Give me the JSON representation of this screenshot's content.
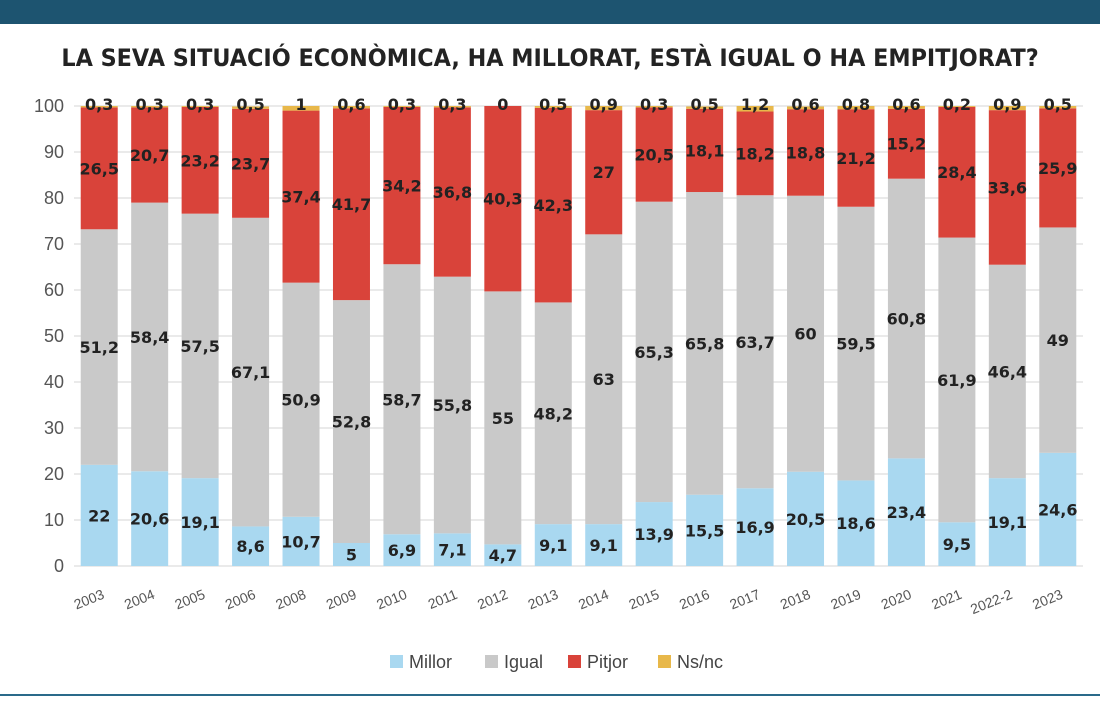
{
  "chart_data": {
    "type": "bar",
    "stacked": true,
    "title": "LA SEVA SITUACIÓ ECONÒMICA, HA MILLORAT, ESTÀ IGUAL O HA EMPITJORAT?",
    "categories": [
      "2003",
      "2004",
      "2005",
      "2006",
      "2008",
      "2009",
      "2010",
      "2011",
      "2012",
      "2013",
      "2014",
      "2015",
      "2016",
      "2017",
      "2018",
      "2019",
      "2020",
      "2021",
      "2022-2",
      "2023"
    ],
    "series": [
      {
        "name": "Millor",
        "color": "#a9d8f0",
        "values": [
          22,
          20.6,
          19.1,
          8.6,
          10.7,
          5,
          6.9,
          7.1,
          4.7,
          9.1,
          9.1,
          13.9,
          15.5,
          16.9,
          20.5,
          18.6,
          23.4,
          9.5,
          19.1,
          24.6
        ],
        "labels": [
          "22",
          "20,6",
          "19,1",
          "8,6",
          "10,7",
          "5",
          "6,9",
          "7,1",
          "4,7",
          "9,1",
          "9,1",
          "13,9",
          "15,5",
          "16,9",
          "20,5",
          "18,6",
          "23,4",
          "9,5",
          "19,1",
          "24,6"
        ]
      },
      {
        "name": "Igual",
        "color": "#c9c9c9",
        "values": [
          51.2,
          58.4,
          57.5,
          67.1,
          50.9,
          52.8,
          58.7,
          55.8,
          55,
          48.2,
          63,
          65.3,
          65.8,
          63.7,
          60,
          59.5,
          60.8,
          61.9,
          46.4,
          49
        ],
        "labels": [
          "51,2",
          "58,4",
          "57,5",
          "67,1",
          "50,9",
          "52,8",
          "58,7",
          "55,8",
          "55",
          "48,2",
          "63",
          "65,3",
          "65,8",
          "63,7",
          "60",
          "59,5",
          "60,8",
          "61,9",
          "46,4",
          "49"
        ]
      },
      {
        "name": "Pitjor",
        "color": "#d9433a",
        "values": [
          26.5,
          20.7,
          23.2,
          23.7,
          37.4,
          41.7,
          34.2,
          36.8,
          40.3,
          42.3,
          27,
          20.5,
          18.1,
          18.2,
          18.8,
          21.2,
          15.2,
          28.4,
          33.6,
          25.9
        ],
        "labels": [
          "26,5",
          "20,7",
          "23,2",
          "23,7",
          "37,4",
          "41,7",
          "34,2",
          "36,8",
          "40,3",
          "42,3",
          "27",
          "20,5",
          "18,1",
          "18,2",
          "18,8",
          "21,2",
          "15,2",
          "28,4",
          "33,6",
          "25,9"
        ]
      },
      {
        "name": "Ns/nc",
        "color": "#e8b84a",
        "values": [
          0.3,
          0.3,
          0.3,
          0.5,
          1,
          0.6,
          0.3,
          0.3,
          0,
          0.5,
          0.9,
          0.3,
          0.5,
          1.2,
          0.6,
          0.8,
          0.6,
          0.2,
          0.9,
          0.5
        ],
        "labels": [
          "0,3",
          "0,3",
          "0,3",
          "0,5",
          "1",
          "0,6",
          "0,3",
          "0,3",
          "0",
          "0,5",
          "0,9",
          "0,3",
          "0,5",
          "1,2",
          "0,6",
          "0,8",
          "0,6",
          "0,2",
          "0,9",
          "0,5"
        ]
      }
    ],
    "yticks": [
      "0",
      "10",
      "20",
      "30",
      "40",
      "50",
      "60",
      "70",
      "80",
      "90",
      "100"
    ],
    "ylim": [
      0,
      100
    ],
    "grid": true,
    "legend": "bottom-center"
  }
}
